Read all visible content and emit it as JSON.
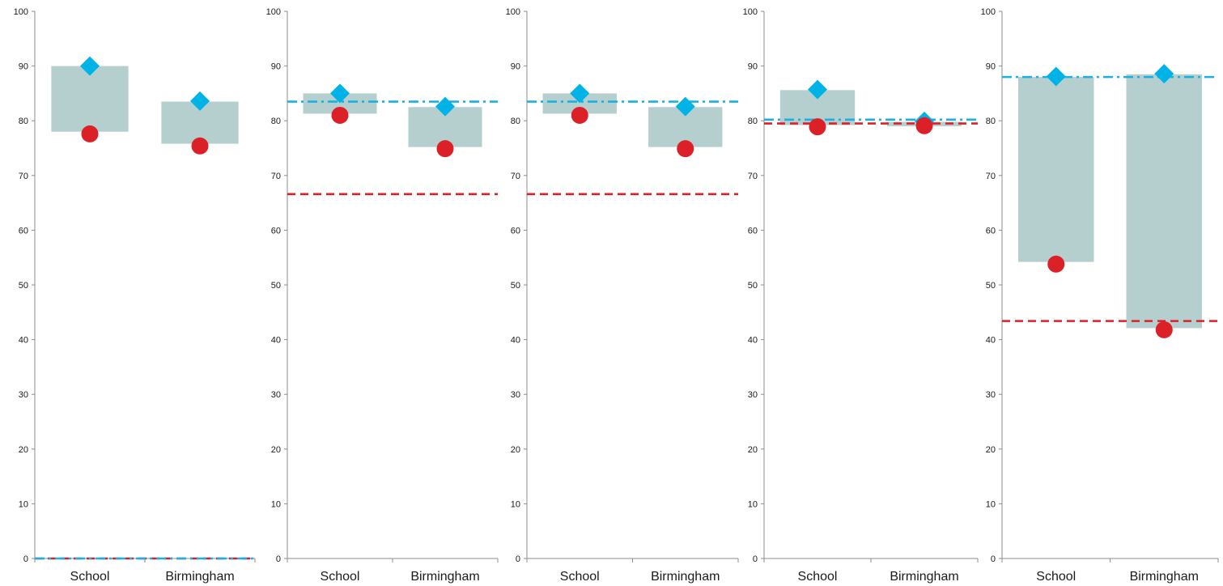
{
  "chart_data": [
    {
      "type": "range-bar",
      "categories": [
        "School",
        "Birmingham"
      ],
      "ylim": [
        0,
        100
      ],
      "yticks": [
        "0",
        "10",
        "20",
        "30",
        "40",
        "50",
        "60",
        "70",
        "80",
        "90",
        "100"
      ],
      "series": [
        {
          "kind": "range",
          "values": [
            [
              78.0,
              90.0
            ],
            [
              75.8,
              83.5
            ]
          ]
        },
        {
          "kind": "diamond",
          "values": [
            90.0,
            83.6
          ]
        },
        {
          "kind": "circle",
          "values": [
            77.6,
            75.4
          ]
        }
      ],
      "reference_lines": [
        {
          "style": "dash",
          "color_key": "red",
          "value": 0.0
        },
        {
          "style": "dashdot",
          "color_key": "blue",
          "value": 0.0
        }
      ]
    },
    {
      "type": "range-bar",
      "categories": [
        "School",
        "Birmingham"
      ],
      "ylim": [
        0,
        100
      ],
      "yticks": [
        "0",
        "10",
        "20",
        "30",
        "40",
        "50",
        "60",
        "70",
        "80",
        "90",
        "100"
      ],
      "series": [
        {
          "kind": "range",
          "values": [
            [
              81.3,
              85.0
            ],
            [
              75.2,
              82.5
            ]
          ]
        },
        {
          "kind": "diamond",
          "values": [
            85.0,
            82.6
          ]
        },
        {
          "kind": "circle",
          "values": [
            81.0,
            74.9
          ]
        }
      ],
      "reference_lines": [
        {
          "style": "dash",
          "color_key": "red",
          "value": 66.6
        },
        {
          "style": "dashdot",
          "color_key": "blue",
          "value": 83.5
        }
      ]
    },
    {
      "type": "range-bar",
      "categories": [
        "School",
        "Birmingham"
      ],
      "ylim": [
        0,
        100
      ],
      "yticks": [
        "0",
        "10",
        "20",
        "30",
        "40",
        "50",
        "60",
        "70",
        "80",
        "90",
        "100"
      ],
      "series": [
        {
          "kind": "range",
          "values": [
            [
              81.3,
              85.0
            ],
            [
              75.2,
              82.5
            ]
          ]
        },
        {
          "kind": "diamond",
          "values": [
            85.0,
            82.6
          ]
        },
        {
          "kind": "circle",
          "values": [
            81.0,
            74.9
          ]
        }
      ],
      "reference_lines": [
        {
          "style": "dash",
          "color_key": "red",
          "value": 66.6
        },
        {
          "style": "dashdot",
          "color_key": "blue",
          "value": 83.5
        }
      ]
    },
    {
      "type": "range-bar",
      "categories": [
        "School",
        "Birmingham"
      ],
      "ylim": [
        0,
        100
      ],
      "yticks": [
        "0",
        "10",
        "20",
        "30",
        "40",
        "50",
        "60",
        "70",
        "80",
        "90",
        "100"
      ],
      "series": [
        {
          "kind": "range",
          "values": [
            [
              79.2,
              85.6
            ],
            [
              79.0,
              79.8
            ]
          ]
        },
        {
          "kind": "diamond",
          "values": [
            85.7,
            79.9
          ]
        },
        {
          "kind": "circle",
          "values": [
            78.9,
            79.1
          ]
        }
      ],
      "reference_lines": [
        {
          "style": "dash",
          "color_key": "red",
          "value": 79.5
        },
        {
          "style": "dashdot",
          "color_key": "blue",
          "value": 80.2
        }
      ]
    },
    {
      "type": "range-bar",
      "categories": [
        "School",
        "Birmingham"
      ],
      "ylim": [
        0,
        100
      ],
      "yticks": [
        "0",
        "10",
        "20",
        "30",
        "40",
        "50",
        "60",
        "70",
        "80",
        "90",
        "100"
      ],
      "series": [
        {
          "kind": "range",
          "values": [
            [
              54.2,
              88.0
            ],
            [
              42.1,
              88.5
            ]
          ]
        },
        {
          "kind": "diamond",
          "values": [
            88.1,
            88.6
          ]
        },
        {
          "kind": "circle",
          "values": [
            53.8,
            41.8
          ]
        }
      ],
      "reference_lines": [
        {
          "style": "dash",
          "color_key": "red",
          "value": 43.4
        },
        {
          "style": "dashdot",
          "color_key": "blue",
          "value": 88.0
        }
      ]
    }
  ],
  "colors": {
    "range": "#b5cfcf",
    "diamond": "#00b3e6",
    "circle": "#dc2027",
    "red": "#dc2027",
    "blue": "#1ab0e3",
    "axis": "#8c8c8c"
  }
}
